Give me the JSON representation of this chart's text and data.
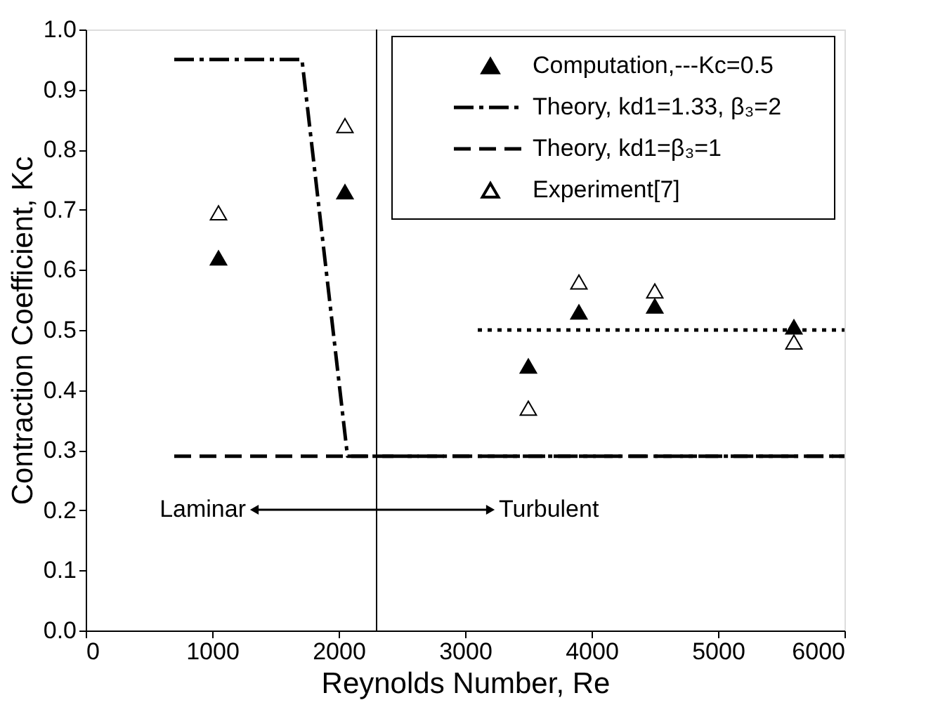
{
  "chart_data": {
    "type": "scatter",
    "xlabel": "Reynolds Number, Re",
    "ylabel": "Contraction Coefficient, Kc",
    "xlim": [
      0,
      6000
    ],
    "xticks": [
      0,
      1000,
      2000,
      3000,
      4000,
      5000,
      6000
    ],
    "ylim": [
      0,
      1.0
    ],
    "yticks": [
      {
        "value": 0,
        "label": "0.0"
      },
      0.1,
      0.2,
      0.3,
      0.4,
      0.5,
      0.6,
      0.7,
      0.8,
      0.9,
      {
        "value": 1,
        "label": "1.0"
      }
    ],
    "grid": false,
    "legend": "top right",
    "series": [
      {
        "name": "Computation,---Kc=0.5",
        "marker": "triangle",
        "color": "#000000",
        "x": [
          1050,
          2050,
          3500,
          3900,
          4500,
          5600
        ],
        "values": [
          0.62,
          0.73,
          0.44,
          0.53,
          0.54,
          0.505
        ]
      },
      {
        "name": "Theory, kd1=1.33, β₃=2",
        "type": "line",
        "line_style": "dashdot",
        "color": "#000000",
        "x": [
          700,
          1710,
          2070,
          6000
        ],
        "values": [
          0.95,
          0.95,
          0.29,
          0.29
        ]
      },
      {
        "name": "Theory, kd1=β₃=1",
        "type": "line",
        "line_style": "dashed",
        "color": "#000000",
        "x": [
          700,
          6000
        ],
        "values": [
          0.29,
          0.29
        ]
      },
      {
        "name": "Experiment[7]",
        "marker": "triangle",
        "color": "#000000",
        "x": [
          1050,
          2050,
          3500,
          3900,
          4500,
          5600
        ],
        "values": [
          0.695,
          0.84,
          0.37,
          0.58,
          0.565,
          0.48
        ]
      },
      {
        "type": "line",
        "line_style": "dotted",
        "color": "#000000",
        "x": [
          3100,
          6000
        ],
        "values": [
          0.5,
          0.5
        ]
      }
    ],
    "ref_lines": [
      {
        "axis": "x",
        "value": 2300,
        "color": "#000000",
        "line_style": "solid"
      }
    ],
    "annotations": [
      "Laminar",
      "Turbulent"
    ]
  }
}
